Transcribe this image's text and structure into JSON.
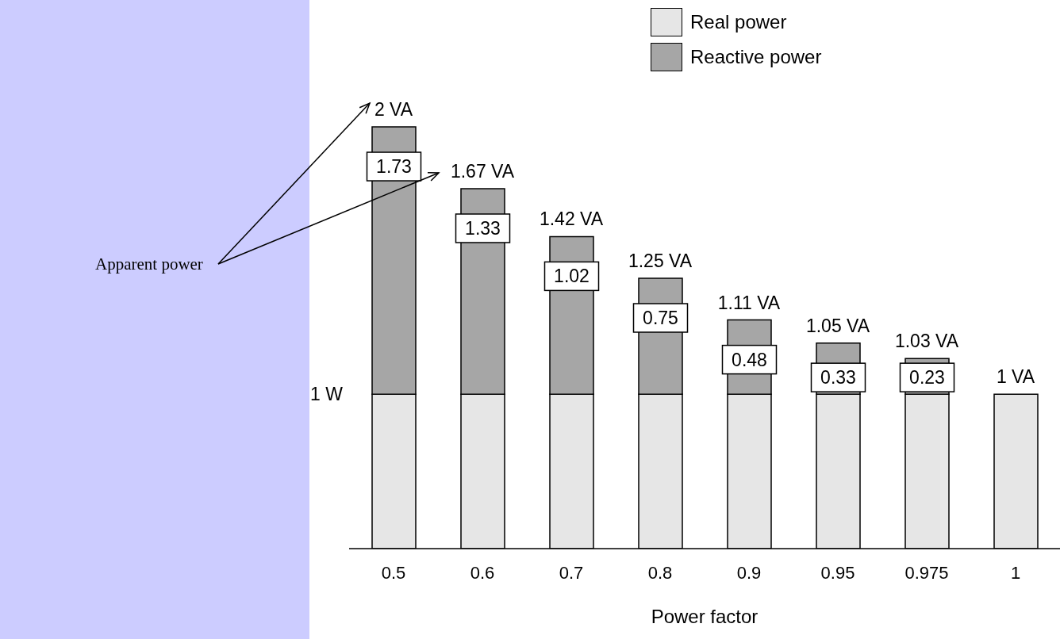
{
  "chart_data": {
    "type": "bar",
    "stacked": true,
    "xlabel": "Power factor",
    "categories": [
      "0.5",
      "0.6",
      "0.7",
      "0.8",
      "0.9",
      "0.95",
      "0.975",
      "1"
    ],
    "series": [
      {
        "name": "Real power",
        "color": "#e6e6e6",
        "values": [
          1,
          1,
          1,
          1,
          1,
          1,
          1,
          1
        ]
      },
      {
        "name": "Reactive power",
        "color": "#a6a6a6",
        "values": [
          1.73,
          1.33,
          1.02,
          0.75,
          0.48,
          0.33,
          0.23,
          0
        ],
        "value_labels": [
          "1.73",
          "1.33",
          "1.02",
          "0.75",
          "0.48",
          "0.33",
          "0.23",
          null
        ]
      }
    ],
    "ylim": [
      0,
      3.5
    ],
    "tick_labels": "x",
    "legend": "top right",
    "annotations": [
      {
        "text": "2 VA",
        "x": "0.5",
        "y": 2.73
      },
      {
        "text": "1.67 VA",
        "x": "0.6",
        "y": 2.33
      },
      {
        "text": "1.42 VA",
        "x": "0.7",
        "y": 2.02
      },
      {
        "text": "1.25 VA",
        "x": "0.8",
        "y": 1.75
      },
      {
        "text": "1.11 VA",
        "x": "0.9",
        "y": 1.48
      },
      {
        "text": "1.05 VA",
        "x": "0.95",
        "y": 1.33
      },
      {
        "text": "1.03 VA",
        "x": "0.975",
        "y": 1.23
      },
      {
        "text": "1 VA",
        "x": "1",
        "y": 1
      },
      "1 W",
      "Apparent power"
    ]
  }
}
